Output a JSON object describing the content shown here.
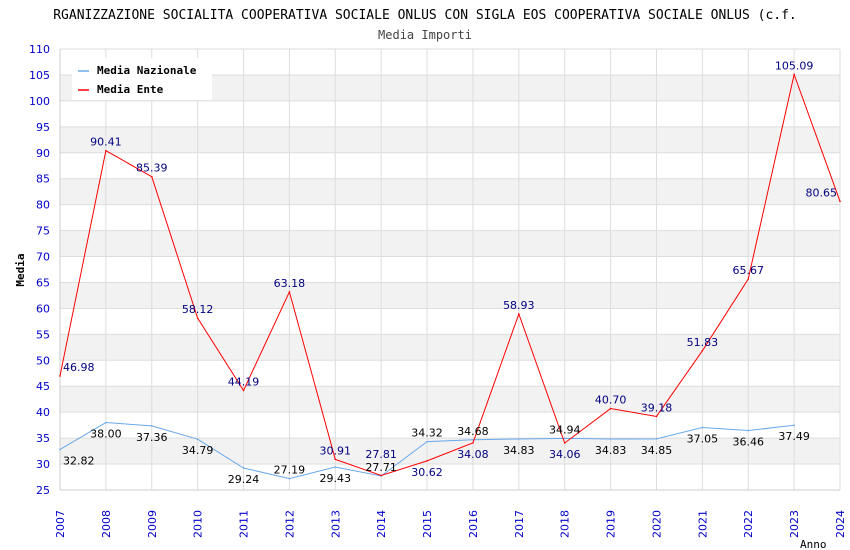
{
  "chart_data": {
    "type": "line",
    "title": "RGANIZZAZIONE SOCIALITA COOPERATIVA SOCIALE ONLUS CON SIGLA EOS COOPERATIVA SOCIALE ONLUS (c.f.",
    "subtitle": "Media Importi",
    "xlabel": "Anno",
    "ylabel": "Media",
    "ylim": [
      25,
      110
    ],
    "yticks": [
      25,
      30,
      35,
      40,
      45,
      50,
      55,
      60,
      65,
      70,
      75,
      80,
      85,
      90,
      95,
      100,
      105,
      110
    ],
    "x": [
      2007,
      2008,
      2009,
      2010,
      2011,
      2012,
      2013,
      2014,
      2015,
      2016,
      2017,
      2018,
      2019,
      2020,
      2021,
      2022,
      2023,
      2024
    ],
    "legend_position": "top-right",
    "series": [
      {
        "name": "Media Nazionale",
        "color": "#6aa8ea",
        "label_color": "#000000",
        "values": [
          32.82,
          38.0,
          37.36,
          34.79,
          29.24,
          27.19,
          29.43,
          27.71,
          34.32,
          34.68,
          34.83,
          34.94,
          34.83,
          34.85,
          37.05,
          36.46,
          37.49,
          null
        ],
        "labels": [
          "32.82",
          "38.00",
          "37.36",
          "34.79",
          "29.24",
          "27.19",
          "29.43",
          "27.71",
          "34.32",
          "34.68",
          "34.83",
          "34.94",
          "34.83",
          "34.85",
          "37.05",
          "36.46",
          "37.49",
          null
        ]
      },
      {
        "name": "Media Ente",
        "color": "#ff0000",
        "label_color": "#000080",
        "values": [
          46.98,
          90.41,
          85.39,
          58.12,
          44.19,
          63.18,
          30.91,
          27.81,
          30.62,
          34.08,
          58.93,
          34.06,
          40.7,
          39.18,
          51.83,
          65.67,
          105.09,
          80.65
        ],
        "labels": [
          "46.98",
          "90.41",
          "85.39",
          "58.12",
          "44.19",
          "63.18",
          "30.91",
          "27.81",
          "30.62",
          "34.08",
          "58.93",
          "34.06",
          "40.70",
          "39.18",
          "51.83",
          "65.67",
          "105.09",
          "80.65"
        ]
      }
    ]
  }
}
